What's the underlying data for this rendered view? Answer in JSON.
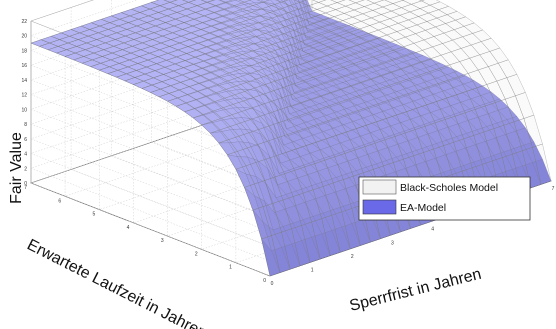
{
  "chart_data": {
    "type": "surface3d",
    "title": "",
    "zlabel": "Fair Value",
    "xlabel": "Sperrfrist in Jahren",
    "ylabel": "Erwartete Laufzeit in Jahren",
    "zlim": [
      0,
      22
    ],
    "xlim": [
      0,
      7
    ],
    "ylim": [
      0,
      7
    ],
    "z_ticks": [
      0,
      2,
      4,
      6,
      8,
      10,
      12,
      14,
      16,
      18,
      20,
      22
    ],
    "x_ticks": [
      0,
      1,
      2,
      3,
      4,
      5,
      6,
      7
    ],
    "y_ticks": [
      0,
      1,
      2,
      3,
      4,
      5,
      6,
      7
    ],
    "grid": true,
    "legend_position": "right",
    "series": [
      {
        "name": "Black-Scholes Model",
        "color": "#f2f2f2",
        "description_values": {
          "z_at_max_runtime": 19
        }
      },
      {
        "name": "EA-Model",
        "color": "#6a6ae8",
        "description_values": {
          "z_at_zero_runtime": 0,
          "z_at_max_runtime": 19
        }
      }
    ]
  },
  "legend": {
    "items": [
      {
        "label": "Black-Scholes Model",
        "color": "#f2f2f2"
      },
      {
        "label": "EA-Model",
        "color": "#6a6ae8"
      }
    ]
  }
}
